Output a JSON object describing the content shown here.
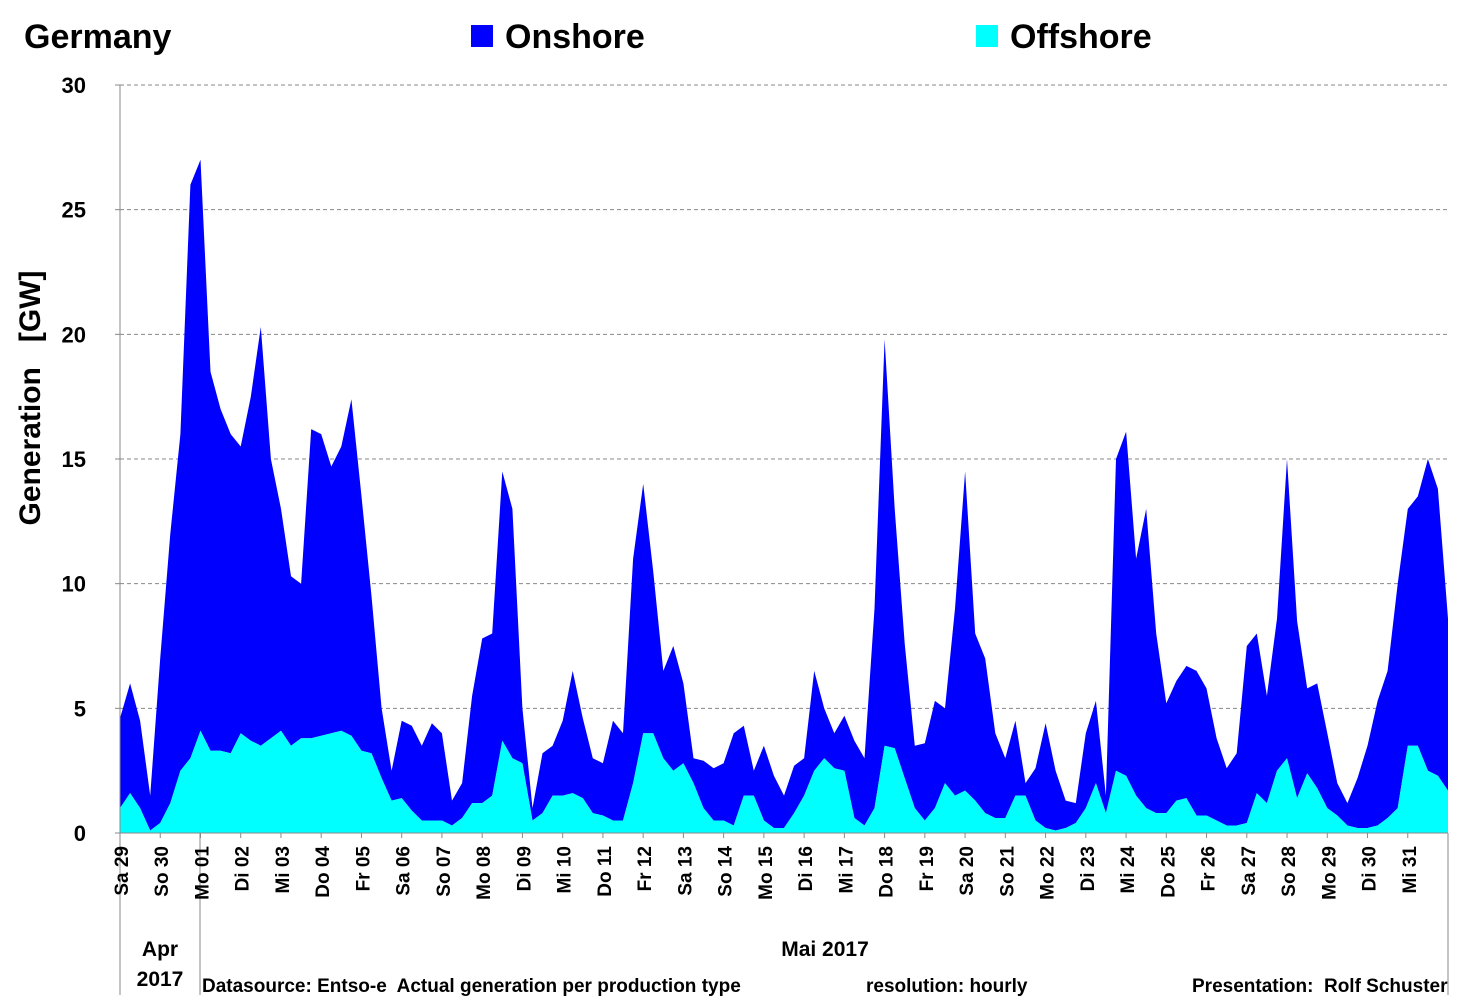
{
  "chart_data": {
    "type": "area",
    "stacked": true,
    "title": "Germany",
    "ylabel": "Generation   [GW]",
    "xlabel": "",
    "ylim": [
      0,
      30
    ],
    "yticks": [
      0,
      5,
      10,
      15,
      20,
      25,
      30
    ],
    "grid": true,
    "legend_placement": "top",
    "x_resolution_hours": 6,
    "day_labels": [
      "Sa 29",
      "So 30",
      "Mo 01",
      "Di 02",
      "Mi 03",
      "Do 04",
      "Fr 05",
      "Sa 06",
      "So 07",
      "Mo 08",
      "Di 09",
      "Mi 10",
      "Do 11",
      "Fr 12",
      "Sa 13",
      "So 14",
      "Mo 15",
      "Di 16",
      "Mi 17",
      "Do 18",
      "Fr 19",
      "Sa 20",
      "So 21",
      "Mo 22",
      "Di 23",
      "Mi 24",
      "Do 25",
      "Fr 26",
      "Sa 27",
      "So 28",
      "Mo 29",
      "Di 30",
      "Mi 31"
    ],
    "month_labels": [
      {
        "text": "Apr 2017",
        "line1": "Apr",
        "line2": "2017"
      },
      {
        "text": "Mai 2017"
      }
    ],
    "series": [
      {
        "name": "Offshore",
        "color": "#00FFFF",
        "values": [
          1,
          1.6,
          1,
          0.1,
          0.4,
          1.2,
          2.5,
          3,
          4.1,
          3.3,
          3.3,
          3.2,
          4,
          3.7,
          3.5,
          3.8,
          4.1,
          3.5,
          3.8,
          3.8,
          3.9,
          4,
          4.1,
          3.9,
          3.3,
          3.2,
          2.2,
          1.3,
          1.4,
          0.9,
          0.5,
          0.5,
          0.5,
          0.3,
          0.6,
          1.2,
          1.2,
          1.5,
          3.7,
          3,
          2.8,
          0.5,
          0.8,
          1.5,
          1.5,
          1.6,
          1.4,
          0.8,
          0.7,
          0.5,
          0.5,
          2,
          4,
          4,
          3,
          2.5,
          2.8,
          2,
          1,
          0.5,
          0.5,
          0.3,
          1.5,
          1.5,
          0.5,
          0.2,
          0.2,
          0.8,
          1.5,
          2.5,
          3,
          2.6,
          2.5,
          0.6,
          0.3,
          1,
          3.5,
          3.4,
          2.2,
          1,
          0.5,
          1,
          2,
          1.5,
          1.7,
          1.3,
          0.8,
          0.6,
          0.6,
          1.5,
          1.5,
          0.5,
          0.2,
          0.1,
          0.2,
          0.4,
          1,
          2,
          0.8,
          2.5,
          2.3,
          1.5,
          1,
          0.8,
          0.8,
          1.3,
          1.4,
          0.7,
          0.7,
          0.5,
          0.3,
          0.3,
          0.4,
          1.6,
          1.2,
          2.5,
          3,
          1.4,
          2.4,
          1.8,
          1,
          0.7,
          0.3,
          0.2,
          0.2,
          0.3,
          0.6,
          1,
          3.5,
          3.5,
          2.5,
          2.3,
          1.7
        ]
      },
      {
        "name": "Onshore",
        "color": "#0000FF",
        "values": [
          3.6,
          4.4,
          3.5,
          1.4,
          6.6,
          10.8,
          13.5,
          23,
          22.9,
          15.2,
          13.7,
          12.8,
          11.5,
          13.8,
          16.8,
          11.2,
          8.9,
          6.8,
          6.2,
          12.4,
          12.1,
          10.7,
          11.4,
          13.5,
          10.2,
          6.3,
          2.8,
          1.2,
          3.1,
          3.4,
          3,
          3.9,
          3.5,
          1,
          1.4,
          4.3,
          6.6,
          6.5,
          10.8,
          10,
          2.2,
          0.5,
          2.4,
          2,
          3,
          4.9,
          3.2,
          2.2,
          2.1,
          4,
          3.5,
          9,
          10,
          6.5,
          3.5,
          5,
          3.2,
          1,
          1.9,
          2.1,
          2.3,
          3.7,
          2.8,
          1,
          3,
          2.1,
          1.3,
          1.9,
          1.5,
          4,
          2,
          1.4,
          2.2,
          3.1,
          2.7,
          8,
          16.3,
          9.6,
          5.4,
          2.5,
          3.1,
          4.3,
          3,
          7.5,
          12.8,
          6.7,
          6.2,
          3.4,
          2.4,
          3,
          0.5,
          2.1,
          4.2,
          2.4,
          1.1,
          0.8,
          3,
          3.3,
          0.7,
          12.5,
          13.8,
          9.5,
          12,
          7.2,
          4.4,
          4.8,
          5.3,
          5.8,
          5.1,
          3.3,
          2.3,
          2.9,
          7.1,
          6.4,
          4.3,
          6.1,
          12,
          7.1,
          3.4,
          4.2,
          3,
          1.3,
          0.9,
          2,
          3.3,
          5,
          5.9,
          9,
          9.5,
          10,
          12.5,
          11.5,
          6.9
        ]
      }
    ]
  },
  "legend": {
    "onshore": "Onshore",
    "offshore": "Offshore"
  },
  "footer": {
    "datasource": "Datasource: Entso-e  Actual generation per production type",
    "resolution": "resolution: hourly",
    "presentation": "Presentation:  Rolf Schuster"
  }
}
